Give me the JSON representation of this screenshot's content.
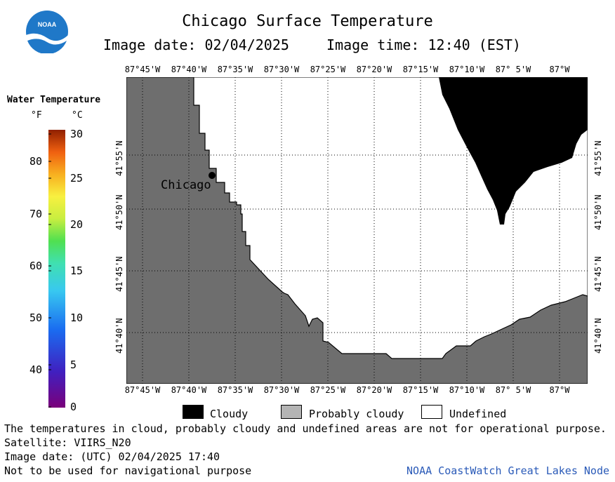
{
  "header": {
    "title": "Chicago Surface Temperature",
    "image_date": "Image date: 02/04/2025",
    "image_time": "Image time: 12:40 (EST)",
    "logo_text": "NOAA"
  },
  "legend": {
    "title": "Water Temperature",
    "unit_f": "°F",
    "unit_c": "°C",
    "f_ticks": [
      "80",
      "70",
      "60",
      "50",
      "40"
    ],
    "c_ticks": [
      "30",
      "25",
      "20",
      "15",
      "10",
      "5",
      "0"
    ],
    "range_c": [
      0,
      30
    ],
    "range_f": [
      32,
      86
    ]
  },
  "map": {
    "lon_labels": [
      "87°45'W",
      "87°40'W",
      "87°35'W",
      "87°30'W",
      "87°25'W",
      "87°20'W",
      "87°15'W",
      "87°10'W",
      "87° 5'W",
      "87°W"
    ],
    "lat_labels": [
      "41°55'N",
      "41°50'N",
      "41°45'N",
      "41°40'N"
    ],
    "city_label": "Chicago",
    "colors": {
      "land": "#6e6e6e",
      "cloudy": "#000000",
      "water_undefined": "#ffffff",
      "grid": "#000000"
    }
  },
  "key": {
    "cloudy": "Cloudy",
    "probably_cloudy": "Probably cloudy",
    "undefined": "Undefined",
    "colors": {
      "cloudy": "#000000",
      "probably_cloudy": "#b4b4b4",
      "undefined": "#ffffff"
    }
  },
  "footer": {
    "disclaimer": "The temperatures in cloud, probably cloudy and undefined areas are not for operational purpose.",
    "satellite": "Satellite: VIIRS_N20",
    "utc_date": "Image date: (UTC) 02/04/2025  17:40",
    "nav_warning": "Not to be used for navigational purpose",
    "node": "NOAA CoastWatch Great Lakes Node"
  }
}
